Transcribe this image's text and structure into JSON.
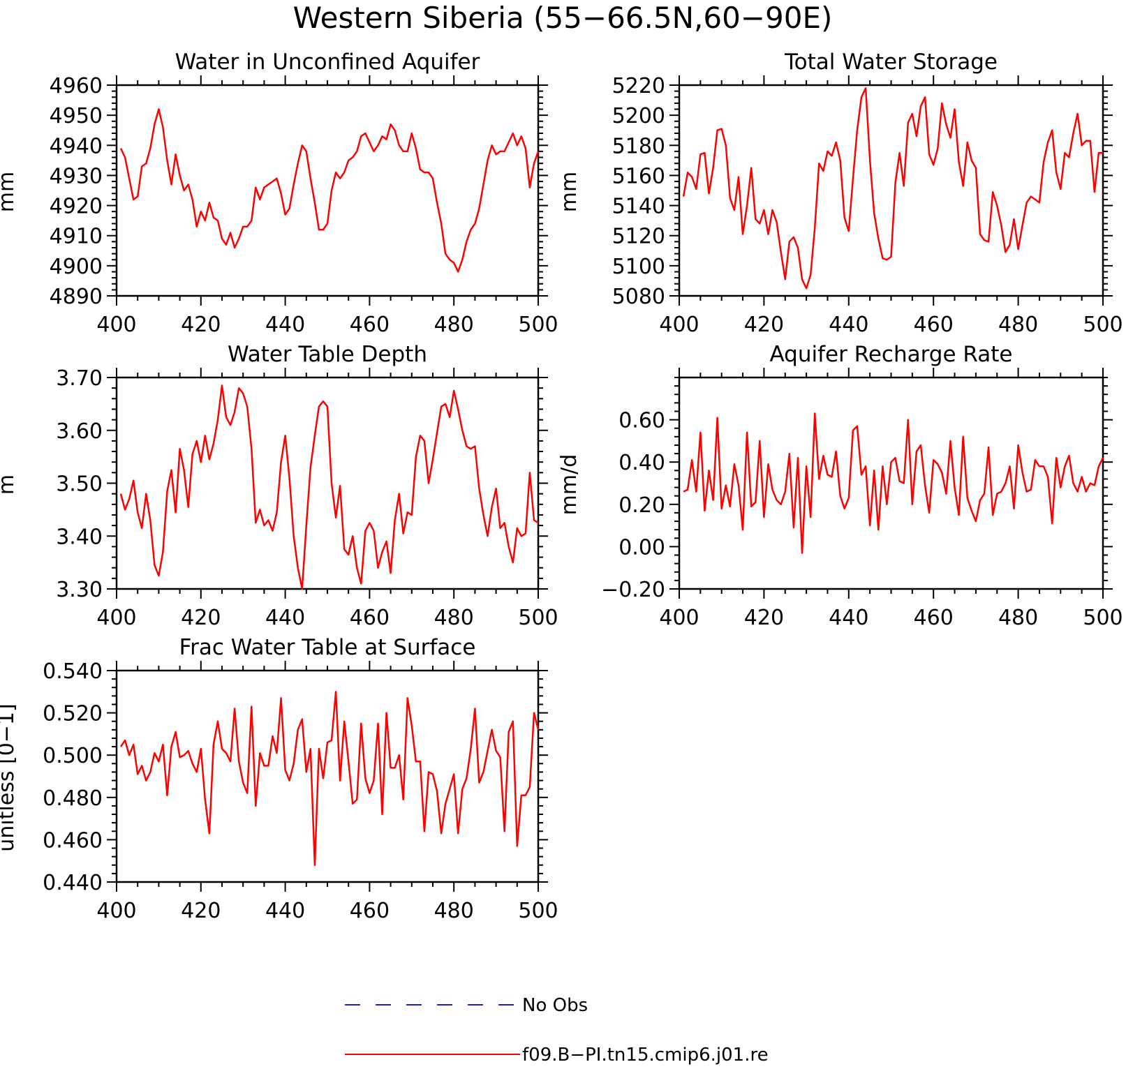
{
  "title": "Western Siberia (55−66.5N,60−90E)",
  "legend": [
    {
      "label": "No Obs",
      "color": "#1f1fd6",
      "dash": true
    },
    {
      "label": "f09.B−PI.tn15.cmip6.j01.re",
      "color": "#ff0000",
      "dash": false
    }
  ],
  "chart_data": [
    {
      "type": "line",
      "title": "Water in Unconfined Aquifer",
      "ylabel": "mm",
      "xlim": [
        400,
        500
      ],
      "ylim": [
        4890,
        4960
      ],
      "xticks": [
        400,
        420,
        440,
        460,
        480,
        500
      ],
      "yticks": [
        4890,
        4900,
        4910,
        4920,
        4930,
        4940,
        4950,
        4960
      ],
      "ytick_labels": [
        "4890",
        "4900",
        "4910",
        "4920",
        "4930",
        "4940",
        "4950",
        "4960"
      ],
      "series": [
        {
          "color": "#ff0000",
          "x_start": 401,
          "x_step": 1,
          "values": [
            4939,
            4936,
            4929,
            4922,
            4923,
            4933,
            4934,
            4939,
            4947,
            4952,
            4946,
            4935,
            4927,
            4937,
            4930,
            4925,
            4927,
            4922,
            4913,
            4918,
            4915,
            4921,
            4916,
            4915,
            4909,
            4907,
            4911,
            4906,
            4909,
            4913,
            4913,
            4915,
            4926,
            4922,
            4926,
            4927,
            4928,
            4929,
            4924,
            4917,
            4919,
            4927,
            4934,
            4940,
            4938,
            4929,
            4921,
            4912,
            4912,
            4914,
            4925,
            4931,
            4929,
            4931,
            4935,
            4936,
            4938,
            4943,
            4944,
            4941,
            4938,
            4940,
            4943,
            4942,
            4947,
            4945,
            4940,
            4938,
            4938,
            4944,
            4939,
            4932,
            4931,
            4931,
            4929,
            4921,
            4914,
            4904,
            4902,
            4901,
            4898,
            4902,
            4908,
            4912,
            4914,
            4919,
            4927,
            4935,
            4940,
            4937,
            4938,
            4938,
            4941,
            4944,
            4940,
            4943,
            4939,
            4926,
            4934,
            4938
          ]
        }
      ]
    },
    {
      "type": "line",
      "title": "Total Water Storage",
      "ylabel": "mm",
      "xlim": [
        400,
        500
      ],
      "ylim": [
        5080,
        5220
      ],
      "xticks": [
        400,
        420,
        440,
        460,
        480,
        500
      ],
      "yticks": [
        5080,
        5100,
        5120,
        5140,
        5160,
        5180,
        5200,
        5220
      ],
      "ytick_labels": [
        "5080",
        "5100",
        "5120",
        "5140",
        "5160",
        "5180",
        "5200",
        "5220"
      ],
      "series": [
        {
          "color": "#ff0000",
          "x_start": 401,
          "x_step": 1,
          "values": [
            5146,
            5162,
            5159,
            5151,
            5174,
            5175,
            5148,
            5165,
            5190,
            5191,
            5180,
            5145,
            5137,
            5159,
            5121,
            5140,
            5165,
            5131,
            5128,
            5137,
            5121,
            5137,
            5129,
            5109,
            5091,
            5116,
            5119,
            5112,
            5091,
            5085,
            5094,
            5125,
            5168,
            5163,
            5176,
            5173,
            5182,
            5170,
            5132,
            5123,
            5158,
            5190,
            5212,
            5218,
            5170,
            5135,
            5118,
            5105,
            5104,
            5106,
            5155,
            5175,
            5153,
            5195,
            5201,
            5186,
            5206,
            5212,
            5174,
            5167,
            5178,
            5208,
            5194,
            5185,
            5204,
            5169,
            5153,
            5182,
            5170,
            5165,
            5121,
            5117,
            5116,
            5149,
            5140,
            5127,
            5109,
            5114,
            5131,
            5111,
            5127,
            5142,
            5146,
            5144,
            5142,
            5169,
            5182,
            5190,
            5162,
            5151,
            5175,
            5172,
            5188,
            5201,
            5180,
            5183,
            5183,
            5149,
            5175,
            5175
          ]
        }
      ]
    },
    {
      "type": "line",
      "title": "Water Table Depth",
      "ylabel": "m",
      "xlim": [
        400,
        500
      ],
      "ylim": [
        3.3,
        3.7
      ],
      "xticks": [
        400,
        420,
        440,
        460,
        480,
        500
      ],
      "yticks": [
        3.3,
        3.4,
        3.5,
        3.6,
        3.7
      ],
      "ytick_labels": [
        "3.30",
        "3.40",
        "3.50",
        "3.60",
        "3.70"
      ],
      "series": [
        {
          "color": "#ff0000",
          "x_start": 401,
          "x_step": 1,
          "values": [
            3.48,
            3.45,
            3.47,
            3.505,
            3.445,
            3.415,
            3.48,
            3.43,
            3.345,
            3.325,
            3.37,
            3.485,
            3.525,
            3.445,
            3.565,
            3.525,
            3.455,
            3.555,
            3.58,
            3.54,
            3.59,
            3.545,
            3.575,
            3.62,
            3.685,
            3.625,
            3.61,
            3.635,
            3.68,
            3.67,
            3.645,
            3.565,
            3.425,
            3.45,
            3.42,
            3.43,
            3.41,
            3.445,
            3.54,
            3.59,
            3.51,
            3.4,
            3.34,
            3.3,
            3.42,
            3.53,
            3.59,
            3.645,
            3.655,
            3.645,
            3.5,
            3.435,
            3.495,
            3.375,
            3.365,
            3.4,
            3.34,
            3.31,
            3.41,
            3.425,
            3.41,
            3.34,
            3.37,
            3.39,
            3.33,
            3.43,
            3.48,
            3.405,
            3.445,
            3.44,
            3.55,
            3.59,
            3.58,
            3.5,
            3.545,
            3.595,
            3.645,
            3.65,
            3.625,
            3.675,
            3.64,
            3.6,
            3.57,
            3.565,
            3.57,
            3.49,
            3.44,
            3.4,
            3.455,
            3.49,
            3.415,
            3.425,
            3.38,
            3.35,
            3.415,
            3.4,
            3.405,
            3.52,
            3.43,
            3.425
          ]
        }
      ]
    },
    {
      "type": "line",
      "title": "Aquifer Recharge Rate",
      "ylabel": "mm/d",
      "xlim": [
        400,
        500
      ],
      "ylim": [
        -0.2,
        0.8
      ],
      "xticks": [
        400,
        420,
        440,
        460,
        480,
        500
      ],
      "yticks": [
        -0.2,
        0.0,
        0.2,
        0.4,
        0.6
      ],
      "ytick_labels": [
        "−0.20",
        "0.00",
        "0.20",
        "0.40",
        "0.60"
      ],
      "series": [
        {
          "color": "#ff0000",
          "x_start": 401,
          "x_step": 1,
          "values": [
            0.26,
            0.27,
            0.41,
            0.26,
            0.54,
            0.17,
            0.36,
            0.22,
            0.61,
            0.18,
            0.29,
            0.19,
            0.39,
            0.29,
            0.08,
            0.54,
            0.19,
            0.21,
            0.5,
            0.14,
            0.39,
            0.27,
            0.22,
            0.2,
            0.26,
            0.44,
            0.09,
            0.42,
            -0.03,
            0.38,
            0.14,
            0.63,
            0.32,
            0.43,
            0.34,
            0.33,
            0.45,
            0.24,
            0.18,
            0.23,
            0.55,
            0.57,
            0.34,
            0.38,
            0.1,
            0.36,
            0.08,
            0.38,
            0.2,
            0.4,
            0.42,
            0.31,
            0.3,
            0.6,
            0.2,
            0.45,
            0.48,
            0.29,
            0.16,
            0.41,
            0.39,
            0.35,
            0.25,
            0.5,
            0.28,
            0.15,
            0.52,
            0.23,
            0.17,
            0.12,
            0.22,
            0.25,
            0.47,
            0.15,
            0.25,
            0.26,
            0.3,
            0.38,
            0.18,
            0.48,
            0.35,
            0.26,
            0.27,
            0.41,
            0.38,
            0.38,
            0.33,
            0.11,
            0.42,
            0.28,
            0.38,
            0.43,
            0.3,
            0.26,
            0.33,
            0.26,
            0.3,
            0.29,
            0.38,
            0.42
          ]
        }
      ]
    },
    {
      "type": "line",
      "title": "Frac Water Table at Surface",
      "ylabel": "unitless [0−1]",
      "xlim": [
        400,
        500
      ],
      "ylim": [
        0.44,
        0.54
      ],
      "xticks": [
        400,
        420,
        440,
        460,
        480,
        500
      ],
      "yticks": [
        0.44,
        0.46,
        0.48,
        0.5,
        0.52,
        0.54
      ],
      "ytick_labels": [
        "0.440",
        "0.460",
        "0.480",
        "0.500",
        "0.520",
        "0.540"
      ],
      "series": [
        {
          "color": "#ff0000",
          "x_start": 401,
          "x_step": 1,
          "values": [
            0.504,
            0.507,
            0.5,
            0.505,
            0.491,
            0.495,
            0.488,
            0.492,
            0.501,
            0.497,
            0.505,
            0.481,
            0.504,
            0.511,
            0.499,
            0.5,
            0.502,
            0.496,
            0.492,
            0.503,
            0.479,
            0.463,
            0.505,
            0.516,
            0.503,
            0.501,
            0.497,
            0.522,
            0.497,
            0.487,
            0.482,
            0.523,
            0.476,
            0.501,
            0.495,
            0.495,
            0.509,
            0.501,
            0.527,
            0.493,
            0.488,
            0.496,
            0.512,
            0.517,
            0.492,
            0.503,
            0.448,
            0.503,
            0.489,
            0.506,
            0.507,
            0.53,
            0.488,
            0.516,
            0.497,
            0.477,
            0.479,
            0.515,
            0.489,
            0.482,
            0.488,
            0.515,
            0.472,
            0.52,
            0.494,
            0.494,
            0.5,
            0.479,
            0.527,
            0.514,
            0.497,
            0.497,
            0.464,
            0.492,
            0.491,
            0.483,
            0.463,
            0.477,
            0.484,
            0.491,
            0.463,
            0.484,
            0.489,
            0.503,
            0.522,
            0.487,
            0.492,
            0.502,
            0.512,
            0.502,
            0.499,
            0.464,
            0.511,
            0.516,
            0.457,
            0.481,
            0.481,
            0.485,
            0.52,
            0.512
          ]
        }
      ]
    }
  ]
}
